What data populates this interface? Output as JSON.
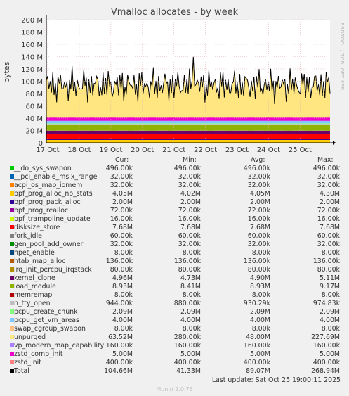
{
  "chart_data": {
    "type": "area",
    "title": "Vmalloc allocates - by week",
    "ylabel": "bytes",
    "watermark": "RRDTOOL / TOBI OETIKER",
    "ylim": [
      0,
      200000000
    ],
    "yticks": [
      {
        "value": 0,
        "label": "0"
      },
      {
        "value": 20000000,
        "label": "20 M"
      },
      {
        "value": 40000000,
        "label": "40 M"
      },
      {
        "value": 60000000,
        "label": "60 M"
      },
      {
        "value": 80000000,
        "label": "80 M"
      },
      {
        "value": 100000000,
        "label": "100 M"
      },
      {
        "value": 120000000,
        "label": "120 M"
      },
      {
        "value": 140000000,
        "label": "140 M"
      },
      {
        "value": 160000000,
        "label": "160 M"
      },
      {
        "value": 180000000,
        "label": "180 M"
      },
      {
        "value": 200000000,
        "label": "200 M"
      }
    ],
    "xticks": [
      "17 Oct",
      "18 Oct",
      "19 Oct",
      "20 Oct",
      "21 Oct",
      "22 Oct",
      "23 Oct",
      "24 Oct",
      "25 Oct"
    ],
    "headers": {
      "cur": "Cur:",
      "min": "Min:",
      "avg": "Avg:",
      "max": "Max:"
    },
    "series": [
      {
        "name": "__do_sys_swapon",
        "color": "#00cc00",
        "cur": "496.00k",
        "min": "496.00k",
        "avg": "496.00k",
        "max": "496.00k",
        "value": 496000
      },
      {
        "name": "__pci_enable_msix_range",
        "color": "#0066b3",
        "cur": "32.00k",
        "min": "32.00k",
        "avg": "32.00k",
        "max": "32.00k",
        "value": 32000
      },
      {
        "name": "acpi_os_map_iomem",
        "color": "#ff8000",
        "cur": "32.00k",
        "min": "32.00k",
        "avg": "32.00k",
        "max": "32.00k",
        "value": 32000
      },
      {
        "name": "bpf_prog_alloc_no_stats",
        "color": "#ffcc00",
        "cur": "4.05M",
        "min": "4.02M",
        "avg": "4.05M",
        "max": "4.30M",
        "value": 4050000
      },
      {
        "name": "bpf_prog_pack_alloc",
        "color": "#330099",
        "cur": "2.00M",
        "min": "2.00M",
        "avg": "2.00M",
        "max": "2.00M",
        "value": 2000000
      },
      {
        "name": "bpf_prog_realloc",
        "color": "#990099",
        "cur": "72.00k",
        "min": "72.00k",
        "avg": "72.00k",
        "max": "72.00k",
        "value": 72000
      },
      {
        "name": "bpf_trampoline_update",
        "color": "#ccff00",
        "cur": "16.00k",
        "min": "16.00k",
        "avg": "16.00k",
        "max": "16.00k",
        "value": 16000
      },
      {
        "name": "disksize_store",
        "color": "#ff0000",
        "cur": "7.68M",
        "min": "7.68M",
        "avg": "7.68M",
        "max": "7.68M",
        "value": 7680000
      },
      {
        "name": "fork_idle",
        "color": "#808080",
        "cur": "60.00k",
        "min": "60.00k",
        "avg": "60.00k",
        "max": "60.00k",
        "value": 60000
      },
      {
        "name": "gen_pool_add_owner",
        "color": "#008f00",
        "cur": "32.00k",
        "min": "32.00k",
        "avg": "32.00k",
        "max": "32.00k",
        "value": 32000
      },
      {
        "name": "hpet_enable",
        "color": "#00487d",
        "cur": "8.00k",
        "min": "8.00k",
        "avg": "8.00k",
        "max": "8.00k",
        "value": 8000
      },
      {
        "name": "htab_map_alloc",
        "color": "#b35a00",
        "cur": "136.00k",
        "min": "136.00k",
        "avg": "136.00k",
        "max": "136.00k",
        "value": 136000
      },
      {
        "name": "irq_init_percpu_irqstack",
        "color": "#b38f00",
        "cur": "80.00k",
        "min": "80.00k",
        "avg": "80.00k",
        "max": "80.00k",
        "value": 80000
      },
      {
        "name": "kernel_clone",
        "color": "#6b006b",
        "cur": "4.96M",
        "min": "4.73M",
        "avg": "4.90M",
        "max": "5.11M",
        "value": 4960000
      },
      {
        "name": "load_module",
        "color": "#8fb300",
        "cur": "8.93M",
        "min": "8.41M",
        "avg": "8.93M",
        "max": "9.17M",
        "value": 8930000
      },
      {
        "name": "memremap",
        "color": "#b30000",
        "cur": "8.00k",
        "min": "8.00k",
        "avg": "8.00k",
        "max": "8.00k",
        "value": 8000
      },
      {
        "name": "n_tty_open",
        "color": "#bebebe",
        "cur": "944.00k",
        "min": "880.00k",
        "avg": "930.29k",
        "max": "974.83k",
        "value": 944000
      },
      {
        "name": "pcpu_create_chunk",
        "color": "#80ff80",
        "cur": "2.09M",
        "min": "2.09M",
        "avg": "2.09M",
        "max": "2.09M",
        "value": 2090000
      },
      {
        "name": "pcpu_get_vm_areas",
        "color": "#80c9ff",
        "cur": "4.00M",
        "min": "4.00M",
        "avg": "4.00M",
        "max": "4.00M",
        "value": 4000000
      },
      {
        "name": "swap_cgroup_swapon",
        "color": "#ffc080",
        "cur": "8.00k",
        "min": "8.00k",
        "avg": "8.00k",
        "max": "8.00k",
        "value": 8000
      },
      {
        "name": "unpurged",
        "color": "#ffe680",
        "cur": "63.52M",
        "min": "280.00k",
        "avg": "48.00M",
        "max": "227.69M",
        "value": 63520000
      },
      {
        "name": "vp_modern_map_capability",
        "color": "#aa80ff",
        "cur": "160.00k",
        "min": "160.00k",
        "avg": "160.00k",
        "max": "160.00k",
        "value": 160000
      },
      {
        "name": "zstd_comp_init",
        "color": "#ee00cc",
        "cur": "5.00M",
        "min": "5.00M",
        "avg": "5.00M",
        "max": "5.00M",
        "value": 5000000
      },
      {
        "name": "zstd_init",
        "color": "#ff8080",
        "cur": "400.00k",
        "min": "400.00k",
        "avg": "400.00k",
        "max": "400.00k",
        "value": 400000
      },
      {
        "name": "Total",
        "color": "#000000",
        "cur": "104.66M",
        "min": "41.33M",
        "avg": "89.07M",
        "max": "268.94M",
        "value": 104660000
      }
    ],
    "grid": true
  },
  "footer": {
    "last_update": "Last update: Sat Oct 25 19:00:11 2025",
    "version": "Munin 2.0.76"
  }
}
